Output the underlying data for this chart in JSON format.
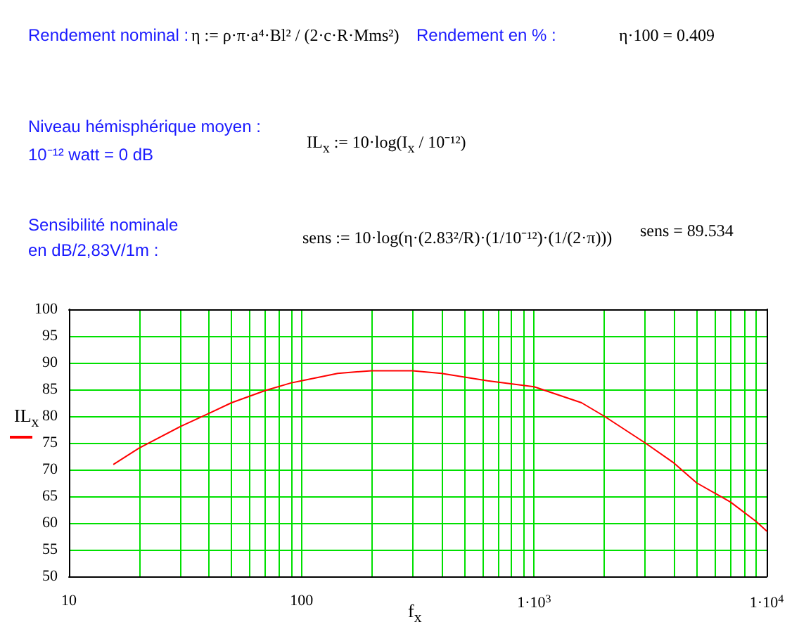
{
  "chart_data": {
    "type": "line",
    "xlabel": "f$_{x}$",
    "ylabel": "IL$_{x}$",
    "annotations": [
      "Rendement nominal :",
      "η := ρ·π·a⁴·Bl² / (2·c·R·Mms²)",
      "Rendement en % :",
      "η·100 = 0.409",
      "Niveau hémisphérique moyen :",
      "10⁻¹² watt = 0 dB",
      "IL$_{x}$ := 10·log(I$_{x}$ / 10⁻¹²)",
      "Sensibilité nominale",
      "en dB/2,83V/1m :",
      "sens := 10·log(η·(2.83²/R)·(1/10⁻¹²)·(1/(2·π)))",
      "sens = 89.534"
    ],
    "log": "x",
    "grid": true,
    "marker": "none",
    "line_style": "solid",
    "xlim": [
      10,
      10000
    ],
    "ylim": [
      50,
      100
    ],
    "xticks": [
      10,
      {
        "value": 20,
        "label": null
      },
      {
        "value": 30,
        "label": null
      },
      {
        "value": 40,
        "label": null
      },
      {
        "value": 50,
        "label": null
      },
      {
        "value": 60,
        "label": null
      },
      {
        "value": 70,
        "label": null
      },
      {
        "value": 80,
        "label": null
      },
      {
        "value": 90,
        "label": null
      },
      100,
      {
        "value": 200,
        "label": null
      },
      {
        "value": 300,
        "label": null
      },
      {
        "value": 400,
        "label": null
      },
      {
        "value": 500,
        "label": null
      },
      {
        "value": 600,
        "label": null
      },
      {
        "value": 700,
        "label": null
      },
      {
        "value": 800,
        "label": null
      },
      {
        "value": 900,
        "label": null
      },
      {
        "value": 1000,
        "label": "1·10$^{3}$"
      },
      {
        "value": 2000,
        "label": null
      },
      {
        "value": 3000,
        "label": null
      },
      {
        "value": 4000,
        "label": null
      },
      {
        "value": 5000,
        "label": null
      },
      {
        "value": 6000,
        "label": null
      },
      {
        "value": 7000,
        "label": null
      },
      {
        "value": 8000,
        "label": null
      },
      {
        "value": 9000,
        "label": null
      },
      {
        "value": 10000,
        "label": "1·10$^{4}$"
      }
    ],
    "yticks": [
      50,
      55,
      60,
      65,
      70,
      75,
      80,
      85,
      90,
      95,
      100
    ],
    "series": [
      {
        "color": "#ff0000",
        "x": [
          15.6,
          20,
          30,
          40,
          50,
          70,
          90,
          100,
          143,
          200,
          300,
          400,
          631,
          1000,
          1600,
          2000,
          3000,
          4000,
          5000,
          7000,
          9000,
          10000
        ],
        "values": [
          71,
          74,
          78,
          80.5,
          82.5,
          84.8,
          86.2,
          86.6,
          88,
          88.5,
          88.5,
          88,
          86.6,
          85.5,
          82.5,
          80,
          75,
          71.2,
          67.5,
          63.9,
          60.3,
          58.5
        ]
      }
    ]
  }
}
